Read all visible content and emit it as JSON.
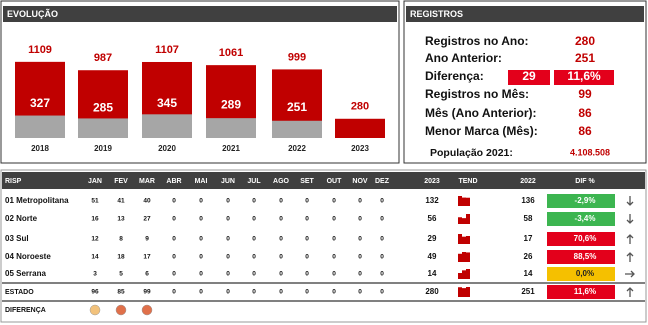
{
  "chart_data": {
    "type": "bar",
    "title": "EVOLUÇÃO",
    "categories": [
      "2018",
      "2019",
      "2020",
      "2021",
      "2022",
      "2023"
    ],
    "ylim": [
      0,
      1500
    ],
    "series": [
      {
        "color": "#c00000",
        "values": [
          1109,
          987,
          1107,
          1061,
          999,
          280
        ]
      },
      {
        "color": "#a6a6a6",
        "values": [
          327,
          285,
          345,
          289,
          251,
          null
        ]
      }
    ]
  },
  "registros": {
    "title": "REGISTROS",
    "rows": [
      {
        "label": "Registros no Ano:",
        "value": 280
      },
      {
        "label": "Ano Anterior:",
        "value": 251
      },
      {
        "label": "Diferença:",
        "value": 29,
        "percent": "11,6%"
      },
      {
        "label": "Registros no Mês:",
        "value": 99
      },
      {
        "label": "Mês (Ano Anterior):",
        "value": 86
      },
      {
        "label": "Menor Marca (Mês):",
        "value": 86
      },
      {
        "label": "População 2021:",
        "value": "4.108.508"
      }
    ]
  },
  "table": {
    "columns": [
      "RISP",
      "JAN",
      "FEV",
      "MAR",
      "ABR",
      "MAI",
      "JUN",
      "JUL",
      "AGO",
      "SET",
      "OUT",
      "NOV",
      "DEZ",
      "2023",
      "TEND",
      "2022",
      "DIF %"
    ],
    "rows": [
      {
        "name": "01 Metropolitana",
        "months": [
          51,
          41,
          40,
          0,
          0,
          0,
          0,
          0,
          0,
          0,
          0,
          0
        ],
        "y2023": 132,
        "y2022": 136,
        "dif": "-2,9%",
        "dif_color": "#3cb550"
      },
      {
        "name": "02 Norte",
        "months": [
          16,
          13,
          27,
          0,
          0,
          0,
          0,
          0,
          0,
          0,
          0,
          0
        ],
        "y2023": 56,
        "y2022": 58,
        "dif": "-3,4%",
        "dif_color": "#3cb550"
      },
      {
        "name": "03 Sul",
        "months": [
          12,
          8,
          9,
          0,
          0,
          0,
          0,
          0,
          0,
          0,
          0,
          0
        ],
        "y2023": 29,
        "y2022": 17,
        "dif": "70,6%",
        "dif_color": "#e3001b"
      },
      {
        "name": "04 Noroeste",
        "months": [
          14,
          18,
          17,
          0,
          0,
          0,
          0,
          0,
          0,
          0,
          0,
          0
        ],
        "y2023": 49,
        "y2022": 26,
        "dif": "88,5%",
        "dif_color": "#e3001b"
      },
      {
        "name": "05 Serrana",
        "months": [
          3,
          5,
          6,
          0,
          0,
          0,
          0,
          0,
          0,
          0,
          0,
          0
        ],
        "y2023": 14,
        "y2022": 14,
        "dif": "0,0%",
        "dif_color": "#f5c000"
      },
      {
        "name": "ESTADO",
        "months": [
          96,
          85,
          99,
          0,
          0,
          0,
          0,
          0,
          0,
          0,
          0,
          0
        ],
        "y2023": 280,
        "y2022": 251,
        "dif": "11,6%",
        "dif_color": "#e3001b"
      }
    ],
    "diferenca": {
      "label": "DIFERENÇA",
      "colors": [
        "#f2c27c",
        "#e0704a",
        "#e0704a"
      ]
    }
  }
}
